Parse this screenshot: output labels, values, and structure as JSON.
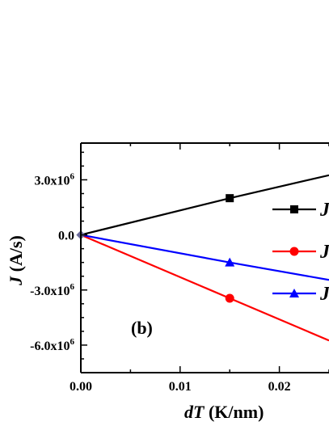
{
  "chart_data": {
    "type": "line",
    "title": "",
    "panel_label": "(b)",
    "xlabel": {
      "var": "dT",
      "unit": " (K/nm)"
    },
    "ylabel": {
      "var": "J",
      "unit": " (A/s)"
    },
    "xlim": [
      0.0,
      0.025
    ],
    "ylim": [
      -7500000.0,
      5000000.0
    ],
    "xticks": [
      {
        "value": 0.0,
        "label": "0.00"
      },
      {
        "value": 0.01,
        "label": "0.01"
      },
      {
        "value": 0.02,
        "label": "0.02"
      }
    ],
    "yticks": [
      {
        "value": 3000000.0,
        "base": "3.0x10",
        "exp": "6"
      },
      {
        "value": 0.0,
        "base": "0.0",
        "exp": ""
      },
      {
        "value": -3000000.0,
        "base": "-3.0x10",
        "exp": "6"
      },
      {
        "value": -6000000.0,
        "base": "-6.0x10",
        "exp": "6"
      }
    ],
    "legend_position": "right (cropped)",
    "series": [
      {
        "name": "J",
        "color": "#000000",
        "marker": "square",
        "x": [
          0.0,
          0.015,
          0.025
        ],
        "y": [
          0.0,
          2000000.0,
          3250000.0
        ]
      },
      {
        "name": "J",
        "color": "#ff0000",
        "marker": "circle",
        "x": [
          0.0,
          0.015,
          0.025
        ],
        "y": [
          0.0,
          -3450000.0,
          -5750000.0
        ]
      },
      {
        "name": "J",
        "color": "#0000ff",
        "marker": "triangle",
        "x": [
          0.0,
          0.015,
          0.025
        ],
        "y": [
          0.0,
          -1500000.0,
          -2450000.0
        ]
      }
    ]
  }
}
